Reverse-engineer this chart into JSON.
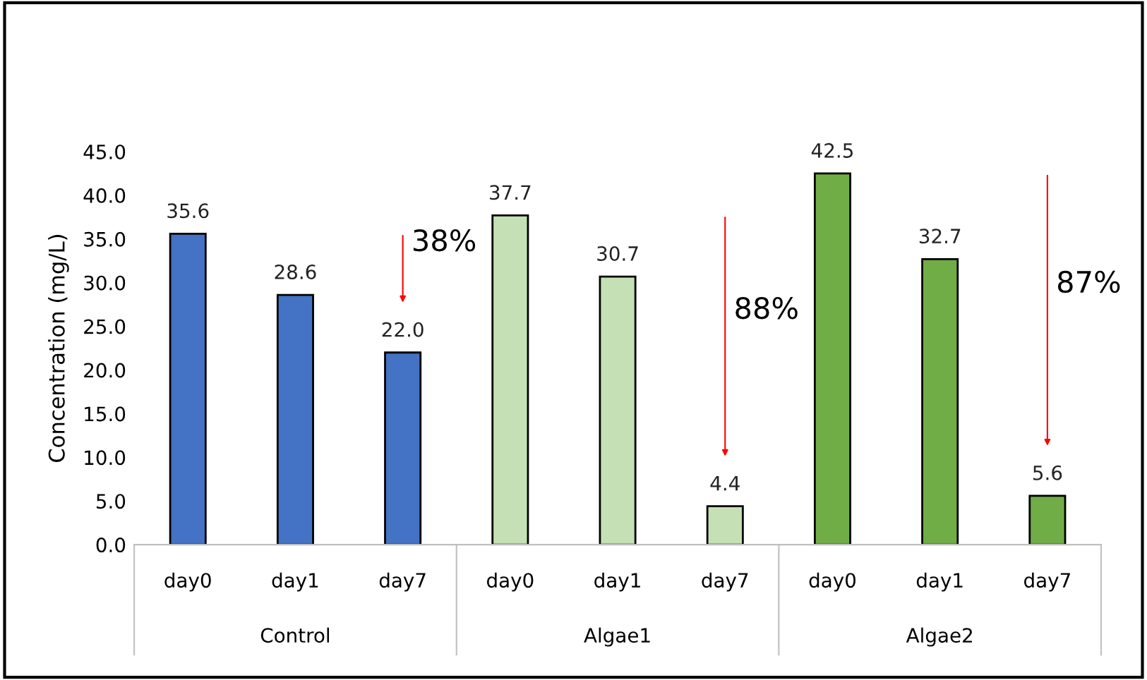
{
  "chart_data": {
    "type": "bar",
    "ylabel": "Concentration (mg/L)",
    "categories": [
      "day0",
      "day1",
      "day7",
      "day0",
      "day1",
      "day7",
      "day0",
      "day1",
      "day7"
    ],
    "values": [
      35.6,
      28.6,
      22.0,
      37.7,
      30.7,
      4.4,
      42.5,
      32.7,
      5.6
    ],
    "value_labels": [
      "35.6",
      "28.6",
      "22.0",
      "37.7",
      "30.7",
      "4.4",
      "42.5",
      "32.7",
      "5.6"
    ],
    "colors": [
      "#4472c4",
      "#4472c4",
      "#4472c4",
      "#c5e0b4",
      "#c5e0b4",
      "#c5e0b4",
      "#70ad47",
      "#70ad47",
      "#70ad47"
    ],
    "ylim": [
      0,
      45
    ],
    "yticks": [
      {
        "value": 0,
        "label": "0.0"
      },
      {
        "value": 5,
        "label": "5.0"
      },
      {
        "value": 10,
        "label": "10.0"
      },
      {
        "value": 15,
        "label": "15.0"
      },
      {
        "value": 20,
        "label": "20.0"
      },
      {
        "value": 25,
        "label": "25.0"
      },
      {
        "value": 30,
        "label": "30.0"
      },
      {
        "value": 35,
        "label": "35.0"
      },
      {
        "value": 40,
        "label": "40.0"
      },
      {
        "value": 45,
        "label": "45.0"
      }
    ],
    "grid": false,
    "annotations": [
      "Control",
      "Algae1",
      "Algae2",
      "38%",
      "88%",
      "87%"
    ]
  }
}
